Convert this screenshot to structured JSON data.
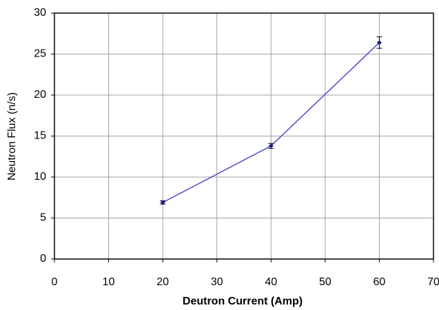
{
  "chart_data": {
    "type": "line",
    "x_label": "Deutron Current (Amp)",
    "y_label": "Neutron Flux (n/s)",
    "x": [
      20,
      40,
      60
    ],
    "series": [
      {
        "color": "#1a1a8c",
        "values": [
          6.9,
          13.8,
          26.4
        ],
        "errors": [
          0.2,
          0.3,
          0.7
        ]
      }
    ],
    "xlim": [
      0,
      70
    ],
    "xticks": [
      0,
      10,
      20,
      30,
      40,
      50,
      60,
      70
    ],
    "ylim": [
      0,
      30
    ],
    "yticks": [
      0,
      5,
      10,
      15,
      20,
      25,
      30
    ],
    "grid": true
  }
}
